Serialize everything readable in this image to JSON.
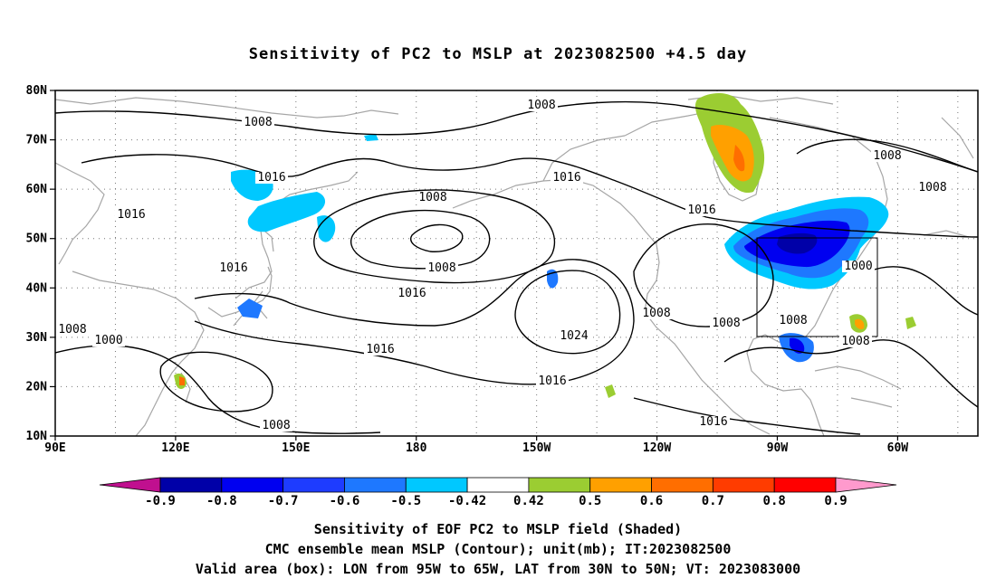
{
  "title": "Sensitivity of PC2 to MSLP at 2023082500 +4.5 day",
  "map": {
    "lat_labels": [
      "80N",
      "70N",
      "60N",
      "50N",
      "40N",
      "30N",
      "20N",
      "10N"
    ],
    "lon_labels": [
      "90E",
      "120E",
      "150E",
      "180",
      "150W",
      "120W",
      "90W",
      "60W"
    ],
    "lon_range_deg_east": [
      90,
      320
    ],
    "lat_range": [
      10,
      80
    ],
    "grid": "dotted",
    "contour_color": "#000000",
    "coastline_color": "#a6a6a6",
    "box": {
      "lon_west": "95W",
      "lon_east": "65W",
      "lat_south": "30N",
      "lat_north": "50N"
    },
    "isobar_labels": [
      "1008",
      "1008",
      "1016",
      "1016",
      "1008",
      "1016",
      "1016",
      "1016",
      "1008",
      "1016",
      "1008",
      "1000",
      "1008",
      "1016",
      "1024",
      "1016",
      "1016",
      "1008",
      "1016",
      "1008",
      "1008",
      "1000",
      "1008",
      "1016",
      "1008",
      "1008"
    ],
    "shaded_areas": [
      {
        "name": "Hudson Bay region",
        "level": 0.6,
        "color": "#ff9900"
      },
      {
        "name": "Great Lakes / eastern Canada",
        "level": -0.8,
        "color": "#0022ee"
      },
      {
        "name": "Sea of Okhotsk",
        "level": -0.42,
        "color": "#00c8ff"
      },
      {
        "name": "Gulf of Mexico coast",
        "level": -0.7,
        "color": "#0055ff"
      }
    ]
  },
  "colorbar": {
    "labels": [
      "-0.9",
      "-0.8",
      "-0.7",
      "-0.6",
      "-0.5",
      "-0.42",
      "0.42",
      "0.5",
      "0.6",
      "0.7",
      "0.8",
      "0.9"
    ],
    "colors": [
      "#c0108f",
      "#0000a8",
      "#0000f0",
      "#1e3cff",
      "#1e78ff",
      "#00c8ff",
      "#ffffff",
      "#9bcd32",
      "#ffa000",
      "#ff6e00",
      "#ff3c00",
      "#ff0000",
      "#ff9acd"
    ]
  },
  "captions": [
    "Sensitivity of EOF PC2 to MSLP field (Shaded)",
    "CMC ensemble mean MSLP (Contour); unit(mb); IT:2023082500",
    "Valid area (box): LON from 95W to 65W, LAT from 30N to 50N; VT: 2023083000"
  ]
}
